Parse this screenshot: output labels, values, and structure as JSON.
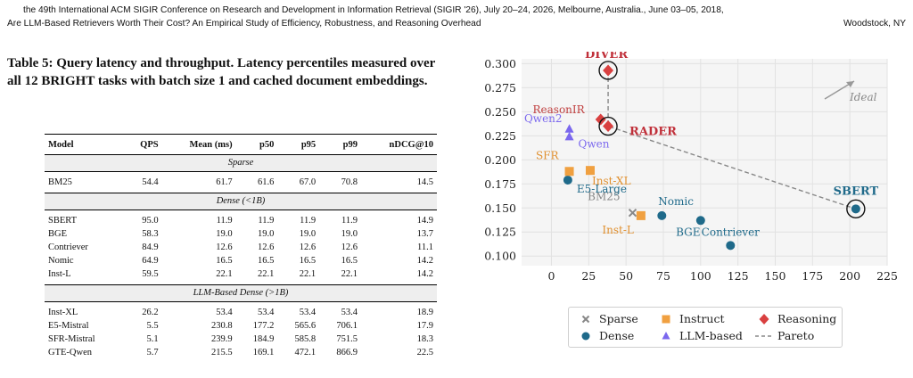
{
  "header": {
    "line1": "the 49th International ACM SIGIR Conference on Research and Development in Information Retrieval (SIGIR '26), July 20–24, 2026, Melbourne, Australia., June 03–05, 2018,",
    "line2_left": "Are LLM-Based Retrievers Worth Their Cost? An Empirical Study of Efficiency, Robustness, and Reasoning Overhead",
    "line2_right": "Woodstock, NY"
  },
  "caption": "Table 5: Query latency and throughput. Latency percentiles measured over all 12 BRIGHT tasks with batch size 1 and cached document embeddings.",
  "table": {
    "columns": [
      "Model",
      "QPS",
      "Mean (ms)",
      "p50",
      "p95",
      "p99",
      "nDCG@10"
    ],
    "groups": [
      {
        "label": "Sparse",
        "rows": [
          [
            "BM25",
            "54.4",
            "61.7",
            "61.6",
            "67.0",
            "70.8",
            "14.5"
          ]
        ]
      },
      {
        "label": "Dense (<1B)",
        "rows": [
          [
            "SBERT",
            "95.0",
            "11.9",
            "11.9",
            "11.9",
            "11.9",
            "14.9"
          ],
          [
            "BGE",
            "58.3",
            "19.0",
            "19.0",
            "19.0",
            "19.0",
            "13.7"
          ],
          [
            "Contriever",
            "84.9",
            "12.6",
            "12.6",
            "12.6",
            "12.6",
            "11.1"
          ],
          [
            "Nomic",
            "64.9",
            "16.5",
            "16.5",
            "16.5",
            "16.5",
            "14.2"
          ],
          [
            "Inst-L",
            "59.5",
            "22.1",
            "22.1",
            "22.1",
            "22.1",
            "14.2"
          ]
        ]
      },
      {
        "label": "LLM-Based Dense (>1B)",
        "rows": [
          [
            "Inst-XL",
            "26.2",
            "53.4",
            "53.4",
            "53.4",
            "53.4",
            "18.9"
          ],
          [
            "E5-Mistral",
            "5.5",
            "230.8",
            "177.2",
            "565.6",
            "706.1",
            "17.9"
          ],
          [
            "SFR-Mistral",
            "5.1",
            "239.9",
            "184.9",
            "585.8",
            "751.5",
            "18.3"
          ],
          [
            "GTE-Qwen",
            "5.7",
            "215.5",
            "169.1",
            "472.1",
            "866.9",
            "22.5"
          ]
        ]
      }
    ]
  },
  "chart_data": {
    "type": "scatter",
    "xlim": [
      -20,
      225
    ],
    "ylim": [
      0.09,
      0.305
    ],
    "xticks": [
      0,
      25,
      50,
      75,
      100,
      125,
      150,
      175,
      200,
      225
    ],
    "yticks": [
      0.1,
      0.125,
      0.15,
      0.175,
      0.2,
      0.225,
      0.25,
      0.275,
      0.3
    ],
    "grid": true,
    "legend_position": "bottom",
    "ideal_label": "Ideal",
    "series": [
      {
        "name": "Sparse",
        "marker": "x",
        "color": "#888888",
        "points": [
          {
            "label": "BM25",
            "x": 54.4,
            "y": 0.145
          }
        ]
      },
      {
        "name": "Dense",
        "marker": "circle",
        "color": "#1f6a8a",
        "points": [
          {
            "label": "SBERT",
            "x": 204,
            "y": 0.149
          },
          {
            "label": "Nomic",
            "x": 74,
            "y": 0.142
          },
          {
            "label": "BGE",
            "x": 100,
            "y": 0.137
          },
          {
            "label": "Contriever",
            "x": 120,
            "y": 0.111
          },
          {
            "label": "E5-Large",
            "x": 11,
            "y": 0.179
          }
        ]
      },
      {
        "name": "Instruct",
        "marker": "square",
        "color": "#f0a040",
        "points": [
          {
            "label": "SFR",
            "x": 12,
            "y": 0.188
          },
          {
            "label": "Inst-XL",
            "x": 26,
            "y": 0.189
          },
          {
            "label": "Inst-L",
            "x": 60,
            "y": 0.142
          }
        ]
      },
      {
        "name": "LLM-based",
        "marker": "triangle",
        "color": "#7b68ee",
        "points": [
          {
            "label": "Qwen2",
            "x": 12,
            "y": 0.232
          },
          {
            "label": "Qwen",
            "x": 12,
            "y": 0.224
          }
        ]
      },
      {
        "name": "Reasoning",
        "marker": "diamond",
        "color": "#d94040",
        "points": [
          {
            "label": "DIVER",
            "x": 38,
            "y": 0.293
          },
          {
            "label": "ReasonIR",
            "x": 33,
            "y": 0.242
          },
          {
            "label": "RADER",
            "x": 38,
            "y": 0.235
          }
        ]
      },
      {
        "name": "Pareto",
        "marker": "dashed-line",
        "color": "#888888",
        "points": [
          {
            "x": 38,
            "y": 0.293
          },
          {
            "x": 38,
            "y": 0.235
          },
          {
            "x": 204,
            "y": 0.149
          }
        ]
      }
    ],
    "legend": [
      "Sparse",
      "Instruct",
      "Reasoning",
      "Dense",
      "LLM-based",
      "Pareto"
    ]
  }
}
